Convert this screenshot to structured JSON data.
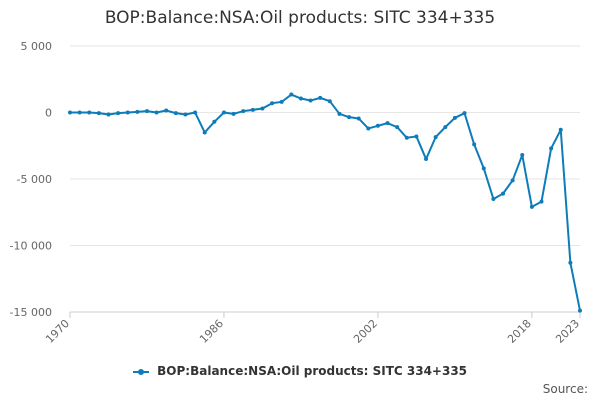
{
  "chart_data": {
    "type": "line",
    "title": "BOP:Balance:NSA:Oil products: SITC 334+335",
    "xlabel": "",
    "ylabel": "",
    "xlim": [
      1970,
      2023
    ],
    "ylim": [
      -15000,
      5000
    ],
    "grid": true,
    "legend": "bottom-center",
    "y_ticks": [
      5000,
      0,
      -5000,
      -10000,
      -15000
    ],
    "y_tick_labels": [
      "5 000",
      "0",
      "-5 000",
      "-10 000",
      "-15 000"
    ],
    "x_ticks": [
      1970,
      1986,
      2002,
      2018,
      2023
    ],
    "x_tick_labels": [
      "1970",
      "1986",
      "2002",
      "2018",
      "2023"
    ],
    "series": [
      {
        "name": "BOP:Balance:NSA:Oil products: SITC 334+335",
        "color": "#0e7cb8",
        "x": [
          1970,
          1971,
          1972,
          1973,
          1974,
          1975,
          1976,
          1977,
          1978,
          1979,
          1980,
          1981,
          1982,
          1983,
          1984,
          1985,
          1986,
          1987,
          1988,
          1989,
          1990,
          1991,
          1992,
          1993,
          1994,
          1995,
          1996,
          1997,
          1998,
          1999,
          2000,
          2001,
          2002,
          2003,
          2004,
          2005,
          2006,
          2007,
          2008,
          2009,
          2010,
          2011,
          2012,
          2013,
          2014,
          2015,
          2016,
          2017,
          2018,
          2019,
          2020,
          2021,
          2022,
          2023
        ],
        "values": [
          0,
          0,
          0,
          -50,
          -150,
          -50,
          0,
          50,
          100,
          0,
          150,
          -50,
          -150,
          0,
          -1500,
          -700,
          0,
          -100,
          100,
          200,
          300,
          700,
          800,
          1350,
          1050,
          900,
          1100,
          850,
          -100,
          -350,
          -450,
          -1200,
          -1000,
          -800,
          -1100,
          -1900,
          -1800,
          -3500,
          -1850,
          -1100,
          -400,
          -50,
          -2400,
          -4200,
          -6500,
          -6100,
          -5100,
          -3200,
          -7100,
          -6700,
          -2700,
          -1300,
          -11300,
          -14900
        ]
      }
    ]
  },
  "source_label": "Source:"
}
